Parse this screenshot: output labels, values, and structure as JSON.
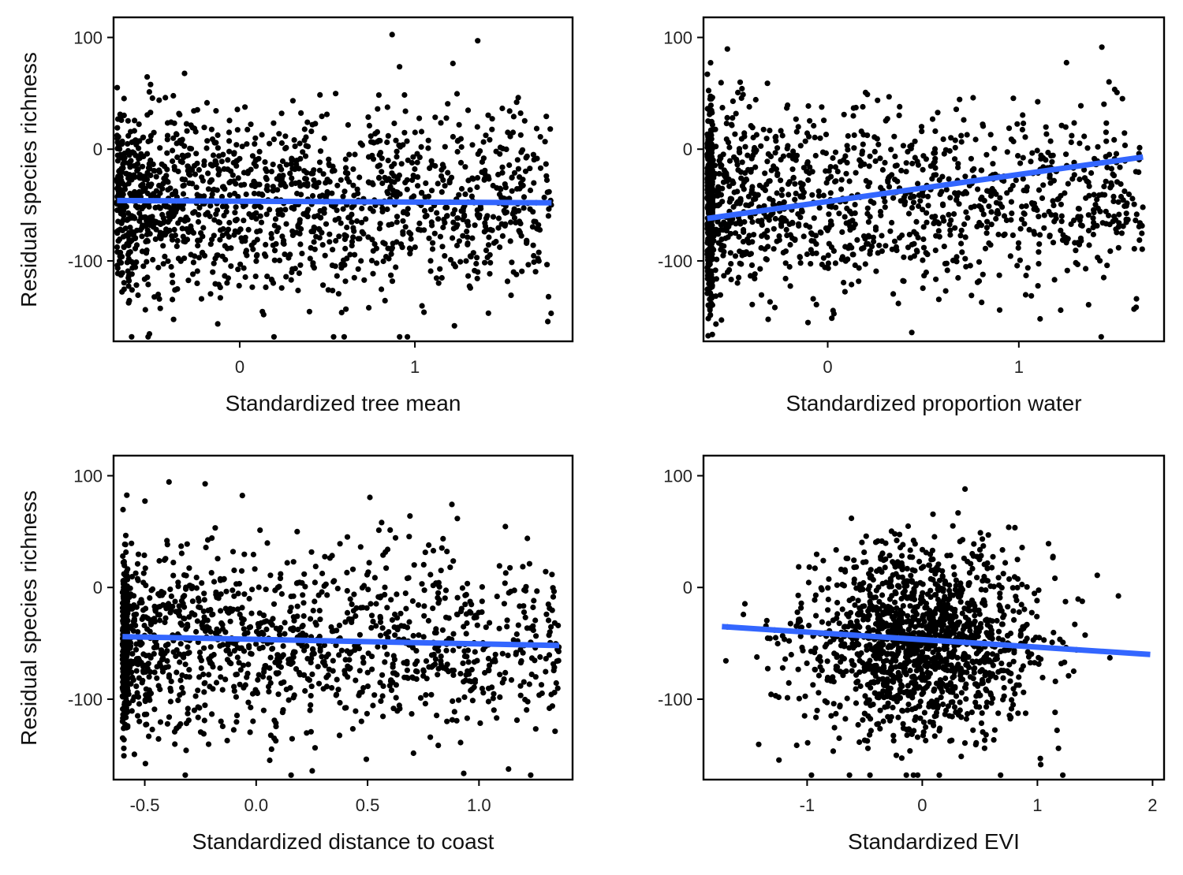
{
  "chart_data": [
    {
      "type": "scatter",
      "ylabel": "Residual species richness",
      "xlabel": "Standardized tree mean",
      "xlim": [
        -0.72,
        1.9
      ],
      "ylim": [
        -172,
        118
      ],
      "xticks": [
        {
          "value": 0,
          "label": "0"
        },
        {
          "value": 1,
          "label": "1"
        }
      ],
      "yticks": [
        {
          "value": 100,
          "label": "100"
        },
        {
          "value": 0,
          "label": "0"
        },
        {
          "value": -100,
          "label": "-100"
        }
      ],
      "scatter": {
        "n": 1500,
        "x_range": [
          -0.7,
          1.78
        ],
        "x_shape": "skew",
        "y_center": -48,
        "y_sd": 42,
        "y_range": [
          -168,
          110
        ],
        "seed": 11
      },
      "fit_line": {
        "x": [
          -0.7,
          1.78
        ],
        "y": [
          -46,
          -48
        ],
        "color": "#3366FF"
      },
      "point_color": "#000000"
    },
    {
      "type": "scatter",
      "ylabel": "",
      "xlabel": "Standardized proportion water",
      "xlim": [
        -0.65,
        1.76
      ],
      "ylim": [
        -172,
        118
      ],
      "xticks": [
        {
          "value": 0,
          "label": "0"
        },
        {
          "value": 1,
          "label": "1"
        }
      ],
      "yticks": [
        {
          "value": 100,
          "label": "100"
        },
        {
          "value": 0,
          "label": "0"
        },
        {
          "value": -100,
          "label": "-100"
        }
      ],
      "scatter": {
        "n": 1500,
        "x_range": [
          -0.63,
          1.65
        ],
        "x_shape": "pile",
        "pile_fraction": 0.22,
        "y_center": -48,
        "y_sd": 42,
        "y_range": [
          -168,
          110
        ],
        "seed": 23
      },
      "fit_line": {
        "x": [
          -0.63,
          1.65
        ],
        "y": [
          -62,
          -7
        ],
        "color": "#3366FF"
      },
      "point_color": "#000000"
    },
    {
      "type": "scatter",
      "ylabel": "Residual species richness",
      "xlabel": "Standardized distance to coast",
      "xlim": [
        -0.64,
        1.42
      ],
      "ylim": [
        -172,
        118
      ],
      "xticks": [
        {
          "value": -0.5,
          "label": "-0.5"
        },
        {
          "value": 0.0,
          "label": "0.0"
        },
        {
          "value": 0.5,
          "label": "0.5"
        },
        {
          "value": 1.0,
          "label": "1.0"
        }
      ],
      "yticks": [
        {
          "value": 100,
          "label": "100"
        },
        {
          "value": 0,
          "label": "0"
        },
        {
          "value": -100,
          "label": "-100"
        }
      ],
      "scatter": {
        "n": 1500,
        "x_range": [
          -0.6,
          1.36
        ],
        "x_shape": "pile",
        "pile_fraction": 0.18,
        "y_center": -48,
        "y_sd": 42,
        "y_range": [
          -168,
          110
        ],
        "seed": 37
      },
      "fit_line": {
        "x": [
          -0.6,
          1.36
        ],
        "y": [
          -44,
          -52
        ],
        "color": "#3366FF"
      },
      "point_color": "#000000"
    },
    {
      "type": "scatter",
      "ylabel": "",
      "xlabel": "Standardized EVI",
      "xlim": [
        -1.9,
        2.1
      ],
      "ylim": [
        -172,
        118
      ],
      "xticks": [
        {
          "value": -1,
          "label": "-1"
        },
        {
          "value": 0,
          "label": "0"
        },
        {
          "value": 1,
          "label": "1"
        },
        {
          "value": 2,
          "label": "2"
        }
      ],
      "yticks": [
        {
          "value": 100,
          "label": "100"
        },
        {
          "value": 0,
          "label": "0"
        },
        {
          "value": -100,
          "label": "-100"
        }
      ],
      "scatter": {
        "n": 1500,
        "x_range": [
          -1.74,
          1.98
        ],
        "x_shape": "normal",
        "x_center": 0,
        "x_sd": 0.5,
        "y_center": -48,
        "y_sd": 42,
        "y_range": [
          -168,
          110
        ],
        "seed": 53
      },
      "fit_line": {
        "x": [
          -1.74,
          1.98
        ],
        "y": [
          -35,
          -60
        ],
        "color": "#3366FF"
      },
      "point_color": "#000000"
    }
  ]
}
